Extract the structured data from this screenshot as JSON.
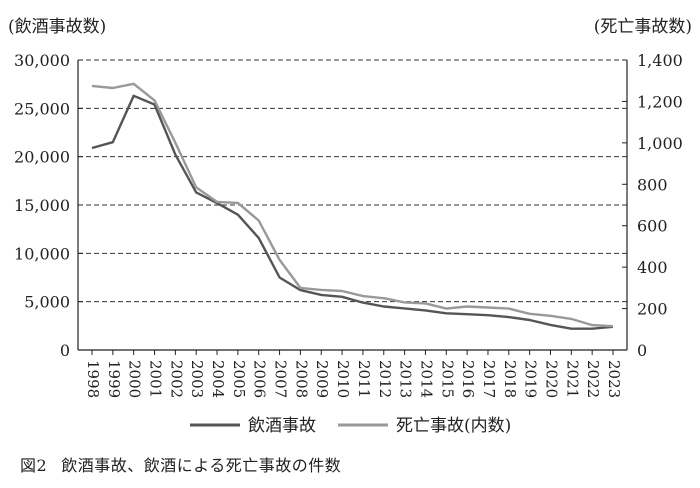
{
  "chart_data": {
    "type": "line",
    "x": [
      "1998",
      "1999",
      "2000",
      "2001",
      "2002",
      "2003",
      "2004",
      "2005",
      "2006",
      "2007",
      "2008",
      "2009",
      "2010",
      "2011",
      "2012",
      "2013",
      "2014",
      "2015",
      "2016",
      "2017",
      "2018",
      "2019",
      "2020",
      "2021",
      "2022",
      "2023"
    ],
    "left_axis": {
      "title": "(飲酒事故数)",
      "ylim": [
        0,
        30000
      ],
      "ticks": [
        "0",
        "5,000",
        "10,000",
        "15,000",
        "20,000",
        "25,000",
        "30,000"
      ]
    },
    "right_axis": {
      "title": "(死亡事故数)",
      "ylim": [
        0,
        1400
      ],
      "ticks": [
        "0",
        "200",
        "400",
        "600",
        "800",
        "1,000",
        "1,200",
        "1,400"
      ]
    },
    "grid": true,
    "legend_position": "bottom",
    "series": [
      {
        "name": "飲酒事故",
        "axis": "left",
        "color": "#555555",
        "values": [
          20900,
          21500,
          26300,
          25400,
          20200,
          16300,
          15200,
          14000,
          11600,
          7500,
          6200,
          5700,
          5500,
          4900,
          4500,
          4300,
          4100,
          3800,
          3700,
          3600,
          3400,
          3100,
          2600,
          2200,
          2200,
          2400
        ]
      },
      {
        "name": "死亡事故(内数)",
        "axis": "right",
        "color": "#999999",
        "values": [
          1275,
          1265,
          1285,
          1205,
          1000,
          785,
          715,
          710,
          625,
          435,
          300,
          290,
          285,
          260,
          250,
          230,
          225,
          200,
          210,
          205,
          200,
          175,
          165,
          150,
          120,
          115
        ]
      }
    ]
  },
  "legend": {
    "series1_label": "飲酒事故",
    "series2_label": "死亡事故(内数)"
  },
  "caption": {
    "figure_no": "図2",
    "text": "飲酒事故、飲酒による死亡事故の件数"
  }
}
